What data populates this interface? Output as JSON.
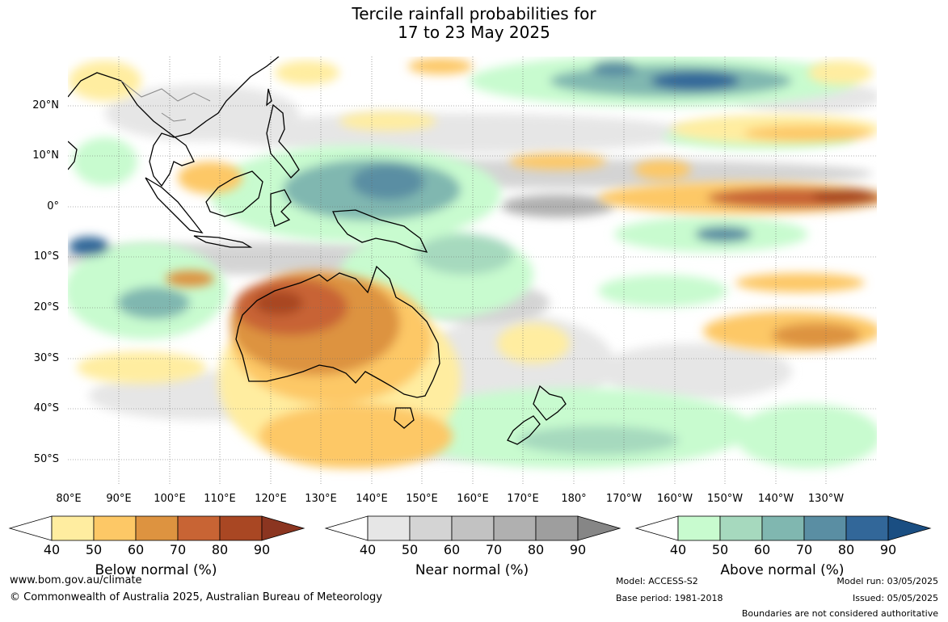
{
  "title": {
    "line1": "Tercile rainfall probabilities for",
    "line2": "17 to 23 May 2025"
  },
  "map": {
    "region": "Australia, Maritime Continent and western Pacific",
    "lat_labels": [
      "20°N",
      "10°N",
      "0°",
      "10°S",
      "20°S",
      "30°S",
      "40°S",
      "50°S"
    ],
    "lon_labels": [
      "80°E",
      "90°E",
      "100°E",
      "110°E",
      "120°E",
      "130°E",
      "140°E",
      "150°E",
      "160°E",
      "170°E",
      "180°",
      "170°W",
      "160°W",
      "150°W",
      "140°W",
      "130°W"
    ],
    "gridlines": true,
    "features": [
      {
        "category": "below",
        "level": 70,
        "description": "Western and central Australia drier than normal"
      },
      {
        "category": "below",
        "level": 60,
        "description": "Southern Australia and ocean south of the continent"
      },
      {
        "category": "below",
        "level": 80,
        "description": "Equatorial Pacific band east of 170°W"
      },
      {
        "category": "above",
        "level": 70,
        "description": "Maritime Continent and Coral Sea wetter than normal"
      },
      {
        "category": "above",
        "level": 80,
        "description": "North-central Pacific near 20°N"
      },
      {
        "category": "near",
        "level": 50,
        "description": "Central equatorial Pacific near normal"
      }
    ]
  },
  "colorbars": [
    {
      "label": "Below normal (%)",
      "ticks": [
        "40",
        "50",
        "60",
        "70",
        "80",
        "90"
      ],
      "colors": [
        "#ffffff",
        "#ffeda0",
        "#fdc866",
        "#dd9340",
        "#c86434",
        "#a94723",
        "#8b3520"
      ]
    },
    {
      "label": "Near normal (%)",
      "ticks": [
        "40",
        "50",
        "60",
        "70",
        "80",
        "90"
      ],
      "colors": [
        "#ffffff",
        "#e6e6e6",
        "#d4d4d4",
        "#c2c2c2",
        "#b0b0b0",
        "#9e9e9e",
        "#868686"
      ]
    },
    {
      "label": "Above normal (%)",
      "ticks": [
        "40",
        "50",
        "60",
        "70",
        "80",
        "90"
      ],
      "colors": [
        "#ffffff",
        "#c8fbcf",
        "#a6d9be",
        "#80b7b0",
        "#5a8ea3",
        "#326799",
        "#1a4e82"
      ]
    }
  ],
  "footer": {
    "website": "www.bom.gov.au/climate",
    "copyright": "© Commonwealth of Australia 2025, Australian Bureau of Meteorology",
    "model": "Model: ACCESS-S2",
    "base_period": "Base period: 1981-2018",
    "model_run": "Model run: 03/05/2025",
    "issued": "Issued: 05/05/2025",
    "disclaimer": "Boundaries are not considered authoritative"
  }
}
